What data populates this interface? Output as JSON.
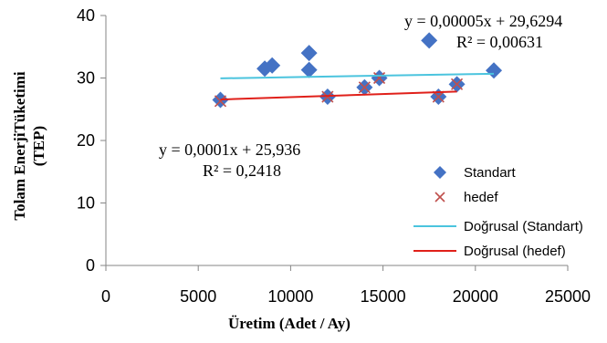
{
  "chart_data": {
    "type": "scatter",
    "xlabel": "Üretim (Adet / Ay)",
    "ylabel_line1": "Tolam EnerjiTüketimi",
    "ylabel_line2": "(TEP)",
    "xlim": [
      0,
      25000
    ],
    "ylim": [
      0,
      40
    ],
    "x_ticks": [
      "0",
      "5000",
      "10000",
      "15000",
      "20000",
      "25000"
    ],
    "y_ticks": [
      "0",
      "10",
      "20",
      "30",
      "40"
    ],
    "grid": false,
    "legend_position": "right",
    "series": [
      {
        "name": "Standart",
        "marker": "diamond",
        "color": "#4472C4",
        "points": [
          {
            "x": 6200,
            "y": 26.5
          },
          {
            "x": 8600,
            "y": 31.5
          },
          {
            "x": 9000,
            "y": 32
          },
          {
            "x": 11000,
            "y": 34
          },
          {
            "x": 11000,
            "y": 31.3
          },
          {
            "x": 12000,
            "y": 27
          },
          {
            "x": 14000,
            "y": 28.5
          },
          {
            "x": 14800,
            "y": 30
          },
          {
            "x": 17500,
            "y": 36
          },
          {
            "x": 18000,
            "y": 27
          },
          {
            "x": 19000,
            "y": 29
          },
          {
            "x": 21000,
            "y": 31.2
          }
        ]
      },
      {
        "name": "hedef",
        "marker": "x",
        "color": "#C0504D",
        "points": [
          {
            "x": 6200,
            "y": 26.3
          },
          {
            "x": 12000,
            "y": 27
          },
          {
            "x": 14000,
            "y": 28.5
          },
          {
            "x": 14800,
            "y": 30
          },
          {
            "x": 18000,
            "y": 27
          },
          {
            "x": 19000,
            "y": 29
          }
        ]
      }
    ],
    "trendlines": [
      {
        "name": "Doğrusal (Standart)",
        "color": "#4BC4DE",
        "x_range": [
          6200,
          21000
        ],
        "equation": "y = 0,00005x + 29,6294",
        "r2": "R² = 0,00631"
      },
      {
        "name": "Doğrusal (hedef)",
        "color": "#E0201A",
        "x_range": [
          6200,
          19000
        ],
        "equation": "y = 0,0001x + 25,936",
        "r2": "R² = 0,2418"
      }
    ]
  }
}
